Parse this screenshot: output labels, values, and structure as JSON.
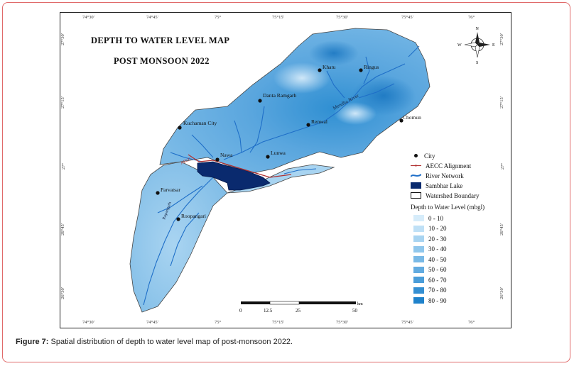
{
  "map": {
    "title_line1": "DEPTH TO WATER LEVEL MAP",
    "title_line2": "POST MONSOON 2022",
    "top_ticks": [
      "74°30'",
      "74°45'",
      "75°",
      "75°15'",
      "75°30'",
      "75°45'",
      "76°"
    ],
    "bottom_ticks": [
      "74°30'",
      "74°45'",
      "75°",
      "75°15'",
      "75°30'",
      "75°45'",
      "76°"
    ],
    "left_ticks": [
      "27°30'",
      "27°15'",
      "27°",
      "26°45'",
      "26°30'"
    ],
    "right_ticks": [
      "27°30'",
      "27°15'",
      "27°",
      "26°45'",
      "26°30'"
    ],
    "cities": [
      "Khatu",
      "Ringus",
      "Danta Ramgarh",
      "Chomun",
      "Renwal",
      "Kuchaman City",
      "Nawa",
      "Lunwa",
      "Parvatsar",
      "Roopangari"
    ],
    "rivers": [
      "Mendha River",
      "Rupangarh"
    ],
    "alignment_label": "AECC",
    "compass": {
      "n": "N",
      "s": "S",
      "e": "E",
      "w": "W"
    },
    "scale_bar": {
      "labels": [
        "0",
        "12.5",
        "25",
        "50"
      ],
      "unit": "km"
    }
  },
  "legend": {
    "city": "City",
    "alignment": "AECC Alignment",
    "river": "River Network",
    "lake": "Sambhar Lake",
    "boundary": "Watershed Boundary",
    "depth_title": "Depth to Water Level (mbgl)",
    "classes": [
      {
        "label": "0 - 10",
        "color": "#d6ecfa"
      },
      {
        "label": "10 - 20",
        "color": "#bfe0f6"
      },
      {
        "label": "20 - 30",
        "color": "#a8d4f1"
      },
      {
        "label": "30 - 40",
        "color": "#90c7ec"
      },
      {
        "label": "40 - 50",
        "color": "#79b9e6"
      },
      {
        "label": "50 - 60",
        "color": "#62abe0"
      },
      {
        "label": "60 - 70",
        "color": "#4a9dd9"
      },
      {
        "label": "70 - 80",
        "color": "#348fd2"
      },
      {
        "label": "80 - 90",
        "color": "#1f82cb"
      }
    ]
  },
  "caption": {
    "label": "Figure 7:",
    "text": "Spatial distribution of depth to water level map of post-monsoon 2022."
  }
}
